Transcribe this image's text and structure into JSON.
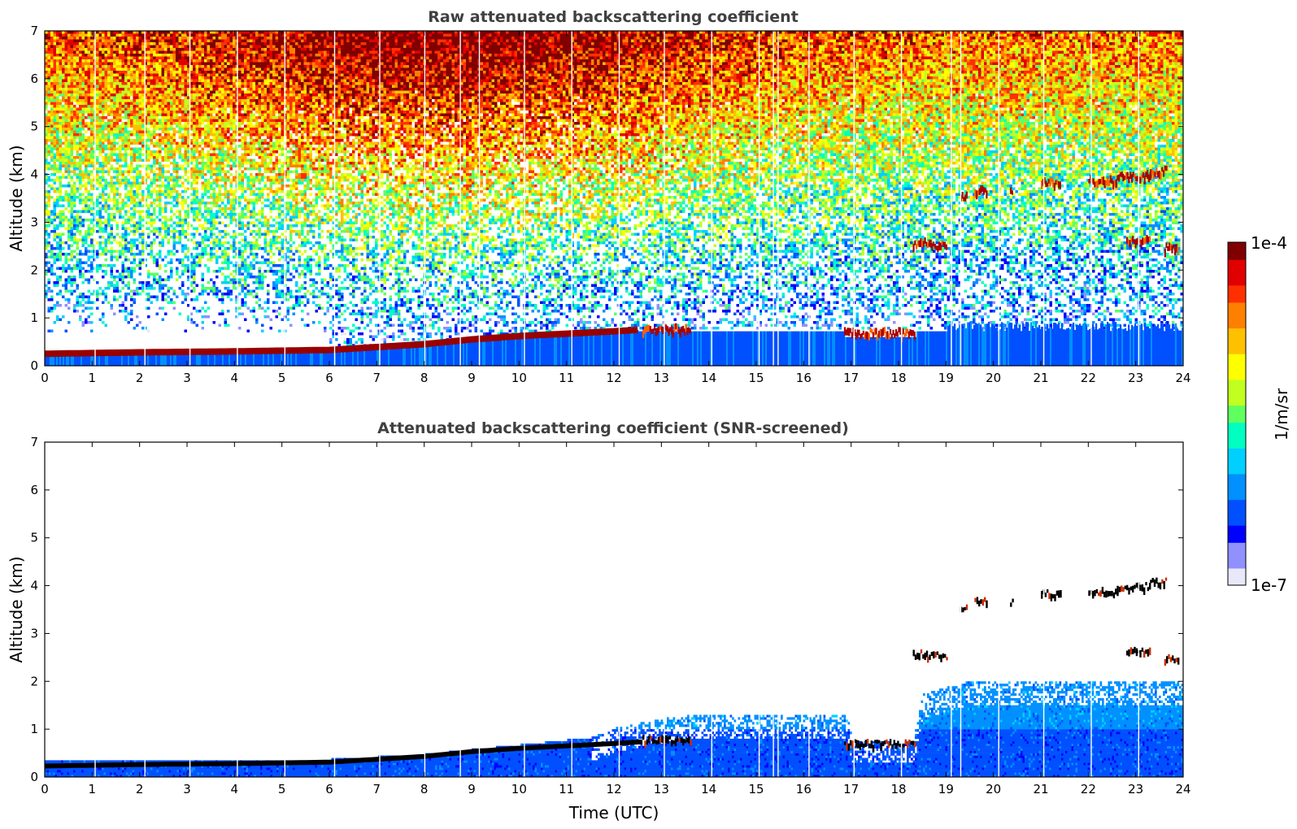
{
  "chart_data": [
    {
      "type": "heatmap",
      "title": "Raw attenuated backscattering coefficient",
      "xlabel": "",
      "ylabel": "Altitude (km)",
      "xlim": [
        0,
        24
      ],
      "ylim": [
        0,
        7
      ],
      "xticks": [
        "0",
        "1",
        "2",
        "3",
        "4",
        "5",
        "6",
        "7",
        "8",
        "9",
        "10",
        "11",
        "12",
        "13",
        "14",
        "15",
        "16",
        "17",
        "18",
        "19",
        "20",
        "21",
        "22",
        "23",
        "24"
      ],
      "yticks": [
        "0",
        "1",
        "2",
        "3",
        "4",
        "5",
        "6",
        "7"
      ],
      "gaps_utc": [
        1.05,
        2.1,
        3.05,
        4.05,
        5.05,
        6.1,
        7.05,
        8.0,
        8.75,
        9.15,
        10.1,
        11.1,
        12.1,
        13.05,
        14.05,
        15.05,
        15.35,
        15.45,
        16.1,
        17.05,
        18.05,
        19.1,
        19.3,
        20.1,
        21.05,
        22.05,
        23.05
      ],
      "features": {
        "boundary_layer_top_km": [
          [
            0,
            0.25
          ],
          [
            2,
            0.28
          ],
          [
            4,
            0.3
          ],
          [
            6,
            0.33
          ],
          [
            8,
            0.45
          ],
          [
            9,
            0.55
          ],
          [
            10,
            0.62
          ],
          [
            11,
            0.67
          ],
          [
            12,
            0.72
          ],
          [
            12.5,
            0.75
          ]
        ],
        "low_cloud_segments": [
          {
            "t0": 12.6,
            "t1": 13.6,
            "alt_km": 0.75
          },
          {
            "t0": 16.85,
            "t1": 18.35,
            "alt_km": 0.67
          }
        ],
        "mid_cloud_segments": [
          {
            "t0": 18.3,
            "t1": 18.6,
            "alt_km": 2.55
          },
          {
            "t0": 18.6,
            "t1": 19.0,
            "alt_km": 2.5
          },
          {
            "t0": 19.3,
            "t1": 19.45,
            "alt_km": 3.5
          },
          {
            "t0": 19.6,
            "t1": 19.85,
            "alt_km": 3.65
          },
          {
            "t0": 20.35,
            "t1": 20.4,
            "alt_km": 3.6
          },
          {
            "t0": 21.0,
            "t1": 21.4,
            "alt_km": 3.8
          },
          {
            "t0": 22.0,
            "t1": 22.6,
            "alt_km": 3.85
          },
          {
            "t0": 22.6,
            "t1": 23.3,
            "alt_km": 3.95
          },
          {
            "t0": 23.3,
            "t1": 23.65,
            "alt_km": 4.05
          },
          {
            "t0": 22.8,
            "t1": 23.3,
            "alt_km": 2.6
          },
          {
            "t0": 23.6,
            "t1": 23.9,
            "alt_km": 2.45
          }
        ]
      }
    },
    {
      "type": "heatmap",
      "title": "Attenuated backscattering coefficient (SNR-screened)",
      "xlabel": "Time (UTC)",
      "ylabel": "Altitude (km)",
      "xlim": [
        0,
        24
      ],
      "ylim": [
        0,
        7
      ],
      "xticks": [
        "0",
        "1",
        "2",
        "3",
        "4",
        "5",
        "6",
        "7",
        "8",
        "9",
        "10",
        "11",
        "12",
        "13",
        "14",
        "15",
        "16",
        "17",
        "18",
        "19",
        "20",
        "21",
        "22",
        "23",
        "24"
      ],
      "yticks": [
        "0",
        "1",
        "2",
        "3",
        "4",
        "5",
        "6",
        "7"
      ],
      "screened_signal_top_km": [
        [
          0,
          0.32
        ],
        [
          6,
          0.35
        ],
        [
          8,
          0.45
        ],
        [
          10,
          0.65
        ],
        [
          11.5,
          0.8
        ],
        [
          12,
          1.0
        ],
        [
          13,
          1.2
        ],
        [
          14,
          1.3
        ],
        [
          15,
          1.3
        ],
        [
          16.9,
          1.3
        ],
        [
          17.0,
          0.75
        ],
        [
          18.3,
          0.75
        ],
        [
          18.5,
          1.7
        ],
        [
          19.5,
          2.0
        ],
        [
          24,
          2.0
        ]
      ]
    }
  ],
  "colorbar": {
    "max_label": "1e-4",
    "min_label": "1e-7",
    "unit_label": "1/m/sr",
    "scale": "log",
    "colormap": [
      "#e8e8f8",
      "#9090ff",
      "#0000ff",
      "#0050ff",
      "#0090ff",
      "#00d0ff",
      "#00ffc0",
      "#60ff60",
      "#c0ff20",
      "#ffff00",
      "#ffc000",
      "#ff8000",
      "#ff3000",
      "#e00000",
      "#800000"
    ]
  }
}
